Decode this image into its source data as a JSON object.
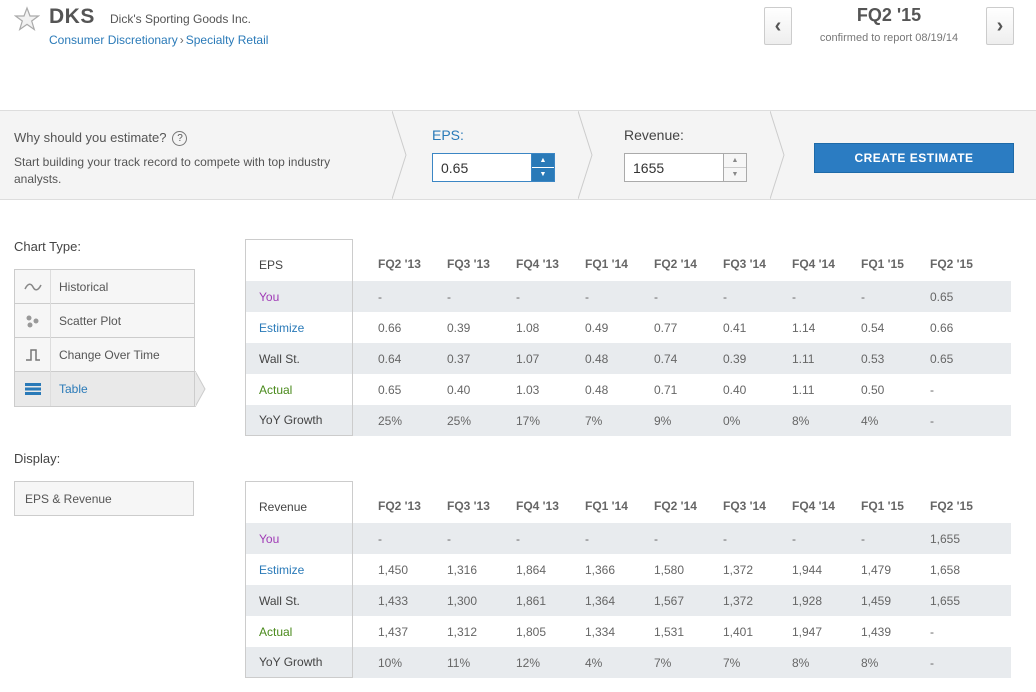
{
  "header": {
    "ticker": "DKS",
    "company": "Dick's Sporting Goods Inc.",
    "sector": "Consumer Discretionary",
    "breadcrumb_sep": "›",
    "industry": "Specialty Retail",
    "quarter": "FQ2 '15",
    "report_status": "confirmed to report 08/19/14",
    "prev_label": "‹",
    "next_label": "›"
  },
  "estimate_bar": {
    "why_title": "Why should you estimate?",
    "help_label": "?",
    "why_text": "Start building your track record to compete with top industry analysts.",
    "eps_label": "EPS:",
    "eps_value": "0.65",
    "revenue_label": "Revenue:",
    "revenue_value": "1655",
    "create_label": "CREATE ESTIMATE"
  },
  "chart_type": {
    "label": "Chart Type:",
    "items": [
      "Historical",
      "Scatter Plot",
      "Change Over Time",
      "Table"
    ],
    "active": "Table"
  },
  "display": {
    "label": "Display:",
    "selected": "EPS & Revenue"
  },
  "eps_table": {
    "title": "EPS",
    "columns": [
      "FQ2 '13",
      "FQ3 '13",
      "FQ4 '13",
      "FQ1 '14",
      "FQ2 '14",
      "FQ3 '14",
      "FQ4 '14",
      "FQ1 '15",
      "FQ2 '15"
    ],
    "rows": [
      {
        "label": "You",
        "values": [
          "-",
          "-",
          "-",
          "-",
          "-",
          "-",
          "-",
          "-",
          "0.65"
        ]
      },
      {
        "label": "Estimize",
        "values": [
          "0.66",
          "0.39",
          "1.08",
          "0.49",
          "0.77",
          "0.41",
          "1.14",
          "0.54",
          "0.66"
        ]
      },
      {
        "label": "Wall St.",
        "values": [
          "0.64",
          "0.37",
          "1.07",
          "0.48",
          "0.74",
          "0.39",
          "1.11",
          "0.53",
          "0.65"
        ]
      },
      {
        "label": "Actual",
        "values": [
          "0.65",
          "0.40",
          "1.03",
          "0.48",
          "0.71",
          "0.40",
          "1.11",
          "0.50",
          "-"
        ]
      },
      {
        "label": "YoY Growth",
        "values": [
          "25%",
          "25%",
          "17%",
          "7%",
          "9%",
          "0%",
          "8%",
          "4%",
          "-"
        ]
      }
    ]
  },
  "revenue_table": {
    "title": "Revenue",
    "columns": [
      "FQ2 '13",
      "FQ3 '13",
      "FQ4 '13",
      "FQ1 '14",
      "FQ2 '14",
      "FQ3 '14",
      "FQ4 '14",
      "FQ1 '15",
      "FQ2 '15"
    ],
    "rows": [
      {
        "label": "You",
        "values": [
          "-",
          "-",
          "-",
          "-",
          "-",
          "-",
          "-",
          "-",
          "1,655"
        ]
      },
      {
        "label": "Estimize",
        "values": [
          "1,450",
          "1,316",
          "1,864",
          "1,366",
          "1,580",
          "1,372",
          "1,944",
          "1,479",
          "1,658"
        ]
      },
      {
        "label": "Wall St.",
        "values": [
          "1,433",
          "1,300",
          "1,861",
          "1,364",
          "1,567",
          "1,372",
          "1,928",
          "1,459",
          "1,655"
        ]
      },
      {
        "label": "Actual",
        "values": [
          "1,437",
          "1,312",
          "1,805",
          "1,334",
          "1,531",
          "1,401",
          "1,947",
          "1,439",
          "-"
        ]
      },
      {
        "label": "YoY Growth",
        "values": [
          "10%",
          "11%",
          "12%",
          "4%",
          "7%",
          "7%",
          "8%",
          "8%",
          "-"
        ]
      }
    ]
  },
  "colors": {
    "accent_blue": "#2a7ab8",
    "you_purple": "#a03bb6",
    "actual_green": "#4a8a1c",
    "button_blue": "#2b7cc2",
    "row_shade": "#e8ebee"
  },
  "icons": {
    "watch": "star-icon",
    "historical": "wave-icon",
    "scatter": "scatter-dots-icon",
    "change": "step-line-icon",
    "table": "table-icon"
  }
}
